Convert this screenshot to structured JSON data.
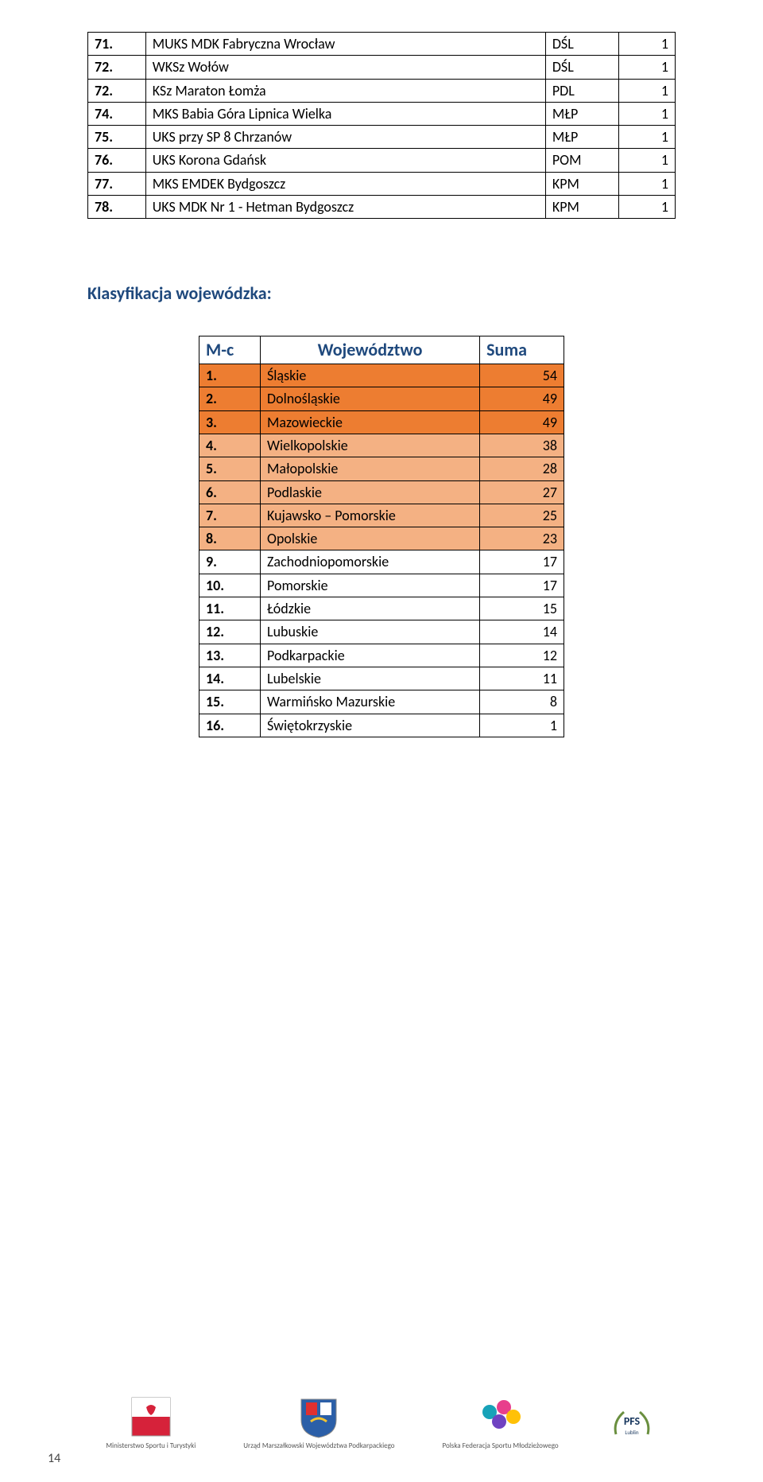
{
  "table1": {
    "rows": [
      {
        "num": "71.",
        "name": "MUKS MDK Fabryczna Wrocław",
        "reg": "DŚL",
        "val": "1"
      },
      {
        "num": "72.",
        "name": "WKSz Wołów",
        "reg": "DŚL",
        "val": "1"
      },
      {
        "num": "72.",
        "name": "KSz Maraton Łomża",
        "reg": "PDL",
        "val": "1"
      },
      {
        "num": "74.",
        "name": "MKS Babia Góra Lipnica Wielka",
        "reg": "MŁP",
        "val": "1"
      },
      {
        "num": "75.",
        "name": "UKS przy SP 8 Chrzanów",
        "reg": "MŁP",
        "val": "1"
      },
      {
        "num": "76.",
        "name": "UKS Korona Gdańsk",
        "reg": "POM",
        "val": "1"
      },
      {
        "num": "77.",
        "name": "MKS EMDEK Bydgoszcz",
        "reg": "KPM",
        "val": "1"
      },
      {
        "num": "78.",
        "name": "UKS MDK Nr 1 - Hetman Bydgoszcz",
        "reg": "KPM",
        "val": "1"
      }
    ]
  },
  "section_title": "Klasyfikacja wojewódzka:",
  "table2": {
    "headers": {
      "mc": "M-c",
      "woj": "Województwo",
      "sum": "Suma"
    },
    "row_color_tiers": [
      "#ed7d31",
      "#ed7d31",
      "#ed7d31",
      "#f4b183",
      "#f4b183",
      "#f4b183",
      "#f4b183",
      "#f4b183",
      "#ffffff",
      "#ffffff",
      "#ffffff",
      "#ffffff",
      "#ffffff",
      "#ffffff",
      "#ffffff",
      "#ffffff"
    ],
    "rows": [
      {
        "mc": "1.",
        "woj": "Śląskie",
        "sum": "54"
      },
      {
        "mc": "2.",
        "woj": "Dolnośląskie",
        "sum": "49"
      },
      {
        "mc": "3.",
        "woj": "Mazowieckie",
        "sum": "49"
      },
      {
        "mc": "4.",
        "woj": "Wielkopolskie",
        "sum": "38"
      },
      {
        "mc": "5.",
        "woj": "Małopolskie",
        "sum": "28"
      },
      {
        "mc": "6.",
        "woj": "Podlaskie",
        "sum": "27"
      },
      {
        "mc": "7.",
        "woj": "Kujawsko – Pomorskie",
        "sum": "25"
      },
      {
        "mc": "8.",
        "woj": "Opolskie",
        "sum": "23"
      },
      {
        "mc": "9.",
        "woj": "Zachodniopomorskie",
        "sum": "17"
      },
      {
        "mc": "10.",
        "woj": "Pomorskie",
        "sum": "17"
      },
      {
        "mc": "11.",
        "woj": "Łódzkie",
        "sum": "15"
      },
      {
        "mc": "12.",
        "woj": "Lubuskie",
        "sum": "14"
      },
      {
        "mc": "13.",
        "woj": "Podkarpackie",
        "sum": "12"
      },
      {
        "mc": "14.",
        "woj": "Lubelskie",
        "sum": "11"
      },
      {
        "mc": "15.",
        "woj": "Warmińsko Mazurskie",
        "sum": "8"
      },
      {
        "mc": "16.",
        "woj": "Świętokrzyskie",
        "sum": "1"
      }
    ]
  },
  "footer": {
    "logos": [
      {
        "caption": "Ministerstwo\nSportu i Turystyki"
      },
      {
        "caption": "Urząd Marszałkowski\nWojewództwa Podkarpackiego"
      },
      {
        "caption": "Polska\nFederacja Sportu\nMłodzieżowego"
      },
      {
        "caption": ""
      }
    ]
  },
  "page_number": "14"
}
